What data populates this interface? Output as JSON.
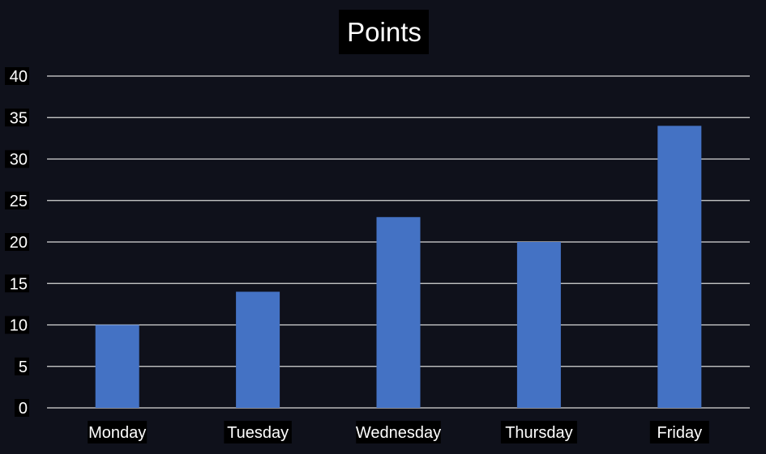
{
  "chart_data": {
    "type": "bar",
    "title": "Points",
    "categories": [
      "Monday",
      "Tuesday",
      "Wednesday",
      "Thursday",
      "Friday"
    ],
    "values": [
      10,
      14,
      23,
      20,
      34
    ],
    "ylim": [
      0,
      40
    ],
    "y_ticks": [
      "0",
      "5",
      "10",
      "15",
      "20",
      "25",
      "30",
      "35",
      "40"
    ],
    "y_tick_values": [
      0,
      5,
      10,
      15,
      20,
      25,
      30,
      35,
      40
    ],
    "grid": true,
    "legend": "none",
    "xlabel": "",
    "ylabel": ""
  },
  "colors": {
    "background": "#0f111b",
    "bar": "#4472c4",
    "gridline": "#d9d9d9",
    "text": "#ffffff",
    "label_box": "#000000"
  }
}
